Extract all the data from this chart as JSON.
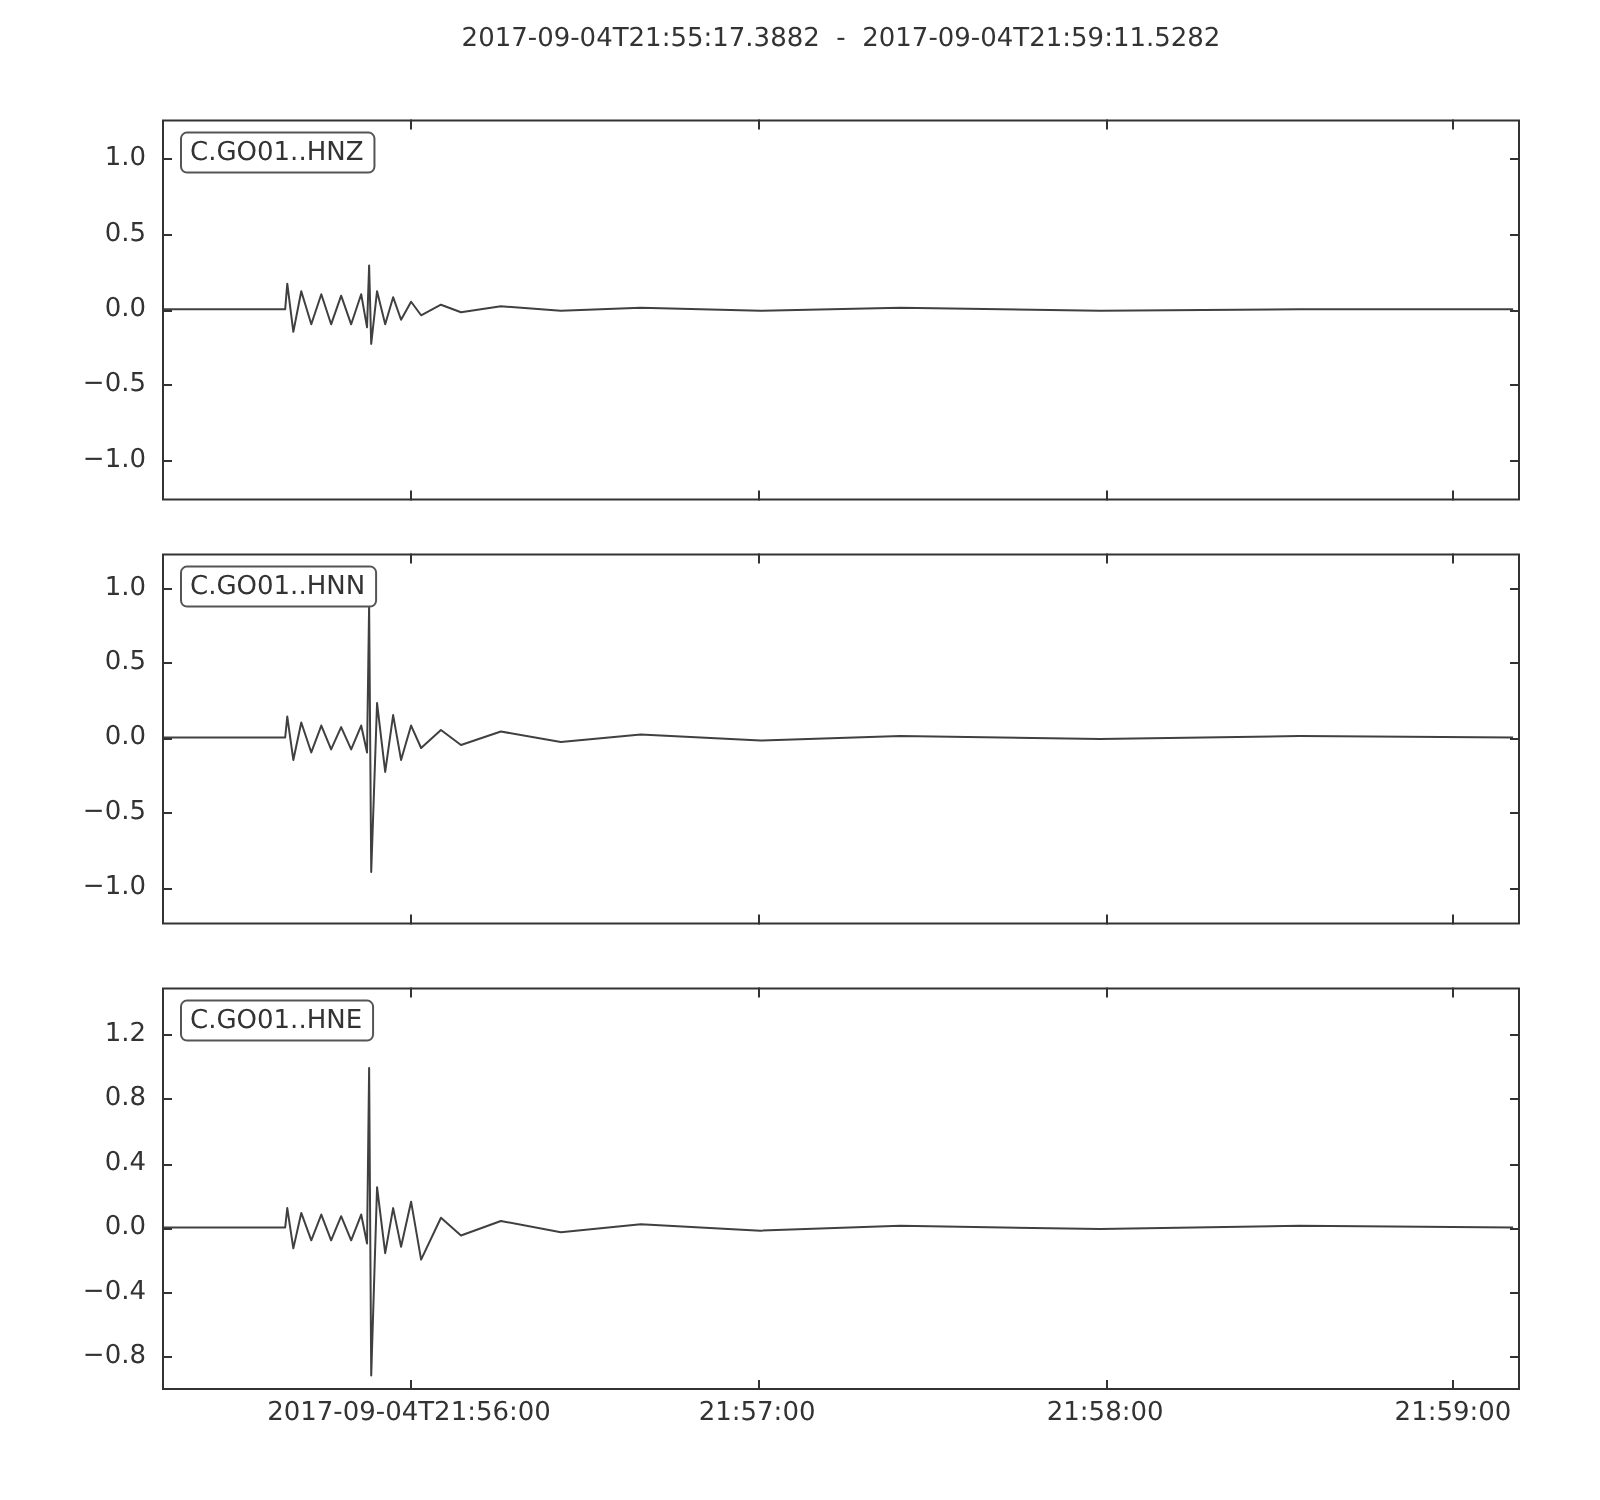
{
  "chart_data": [
    {
      "type": "line",
      "title": "2017-09-04T21:55:17.3882  -  2017-09-04T21:59:11.5282",
      "annotations": [
        "C.GO01..HNZ"
      ],
      "xlim": [
        21.9215,
        21.98654
      ],
      "xticks": [
        {
          "value": 21.93333,
          "label": null
        },
        {
          "value": 21.95,
          "label": null
        },
        {
          "value": 21.96667,
          "label": null
        },
        {
          "value": 21.98333,
          "label": null
        }
      ],
      "ylim": [
        -1.27,
        1.26
      ],
      "yticks": [
        {
          "value": -1,
          "label": "−1.0"
        },
        {
          "value": -0.5,
          "label": "−0.5"
        },
        {
          "value": 0,
          "label": "0.0"
        },
        {
          "value": 0.5,
          "label": "0.5"
        },
        {
          "value": 1,
          "label": "1.0"
        }
      ],
      "tick_labels": "y",
      "series": [
        {
          "color": "#404040",
          "x": [
            21.92157,
            21.9274,
            21.9275,
            21.92779,
            21.92817,
            21.92865,
            21.92913,
            21.9296,
            21.93008,
            21.93056,
            21.93104,
            21.93132,
            21.93142,
            21.93152,
            21.9318,
            21.93219,
            21.93257,
            21.93295,
            21.93343,
            21.93391,
            21.93486,
            21.93582,
            21.93773,
            21.9406,
            21.94443,
            21.95016,
            21.95686,
            21.96642,
            21.97598,
            21.98621
          ],
          "values": [
            0,
            0,
            0.17,
            -0.15,
            0.12,
            -0.1,
            0.1,
            -0.1,
            0.09,
            -0.1,
            0.1,
            -0.12,
            0.29,
            -0.23,
            0.12,
            -0.1,
            0.08,
            -0.07,
            0.05,
            -0.04,
            0.03,
            -0.02,
            0.02,
            -0.01,
            0.01,
            -0.01,
            0.01,
            -0.01,
            0,
            0
          ]
        }
      ]
    },
    {
      "type": "line",
      "annotations": [
        "C.GO01..HNN"
      ],
      "xlim": [
        21.9215,
        21.98654
      ],
      "xticks": [
        {
          "value": 21.93333,
          "label": null
        },
        {
          "value": 21.95,
          "label": null
        },
        {
          "value": 21.96667,
          "label": null
        },
        {
          "value": 21.98333,
          "label": null
        }
      ],
      "ylim": [
        -1.25,
        1.23
      ],
      "yticks": [
        {
          "value": -1,
          "label": "−1.0"
        },
        {
          "value": -0.5,
          "label": "−0.5"
        },
        {
          "value": 0,
          "label": "0.0"
        },
        {
          "value": 0.5,
          "label": "0.5"
        },
        {
          "value": 1,
          "label": "1.0"
        }
      ],
      "tick_labels": "y",
      "series": [
        {
          "color": "#404040",
          "x": [
            21.92157,
            21.9274,
            21.9275,
            21.92779,
            21.92817,
            21.92865,
            21.92913,
            21.9296,
            21.93008,
            21.93056,
            21.93104,
            21.93132,
            21.93142,
            21.93152,
            21.9318,
            21.93219,
            21.93257,
            21.93295,
            21.93343,
            21.93391,
            21.93486,
            21.93582,
            21.93773,
            21.9406,
            21.94443,
            21.95016,
            21.95686,
            21.96642,
            21.97598,
            21.98621
          ],
          "values": [
            0,
            0,
            0.14,
            -0.15,
            0.1,
            -0.1,
            0.08,
            -0.08,
            0.07,
            -0.08,
            0.08,
            -0.1,
            0.89,
            -0.9,
            0.23,
            -0.23,
            0.15,
            -0.15,
            0.08,
            -0.07,
            0.05,
            -0.05,
            0.04,
            -0.03,
            0.02,
            -0.02,
            0.01,
            -0.01,
            0.01,
            0
          ]
        }
      ]
    },
    {
      "type": "line",
      "annotations": [
        "C.GO01..HNE"
      ],
      "xlim": [
        21.9215,
        21.98654
      ],
      "xticks": [
        {
          "value": 21.93333,
          "label": "2017-09-04T21:56:00"
        },
        {
          "value": 21.95,
          "label": "21:57:00"
        },
        {
          "value": 21.96667,
          "label": "21:58:00"
        },
        {
          "value": 21.98333,
          "label": "21:59:00"
        }
      ],
      "ylim": [
        -1.01,
        1.49
      ],
      "yticks": [
        {
          "value": -0.8,
          "label": "−0.8"
        },
        {
          "value": -0.4,
          "label": "−0.4"
        },
        {
          "value": 0,
          "label": "0.0"
        },
        {
          "value": 0.4,
          "label": "0.4"
        },
        {
          "value": 0.8,
          "label": "0.8"
        },
        {
          "value": 1.2,
          "label": "1.2"
        }
      ],
      "series": [
        {
          "color": "#404040",
          "x": [
            21.92157,
            21.9274,
            21.9275,
            21.92779,
            21.92817,
            21.92865,
            21.92913,
            21.9296,
            21.93008,
            21.93056,
            21.93104,
            21.93132,
            21.93142,
            21.93152,
            21.9318,
            21.93219,
            21.93257,
            21.93295,
            21.93343,
            21.93391,
            21.93486,
            21.93582,
            21.93773,
            21.9406,
            21.94443,
            21.95016,
            21.95686,
            21.96642,
            21.97598,
            21.98621
          ],
          "values": [
            0,
            0,
            0.12,
            -0.13,
            0.09,
            -0.08,
            0.08,
            -0.08,
            0.07,
            -0.08,
            0.08,
            -0.1,
            0.99,
            -0.92,
            0.25,
            -0.16,
            0.12,
            -0.12,
            0.16,
            -0.2,
            0.06,
            -0.05,
            0.04,
            -0.03,
            0.02,
            -0.02,
            0.01,
            -0.01,
            0.01,
            0
          ]
        }
      ]
    }
  ]
}
